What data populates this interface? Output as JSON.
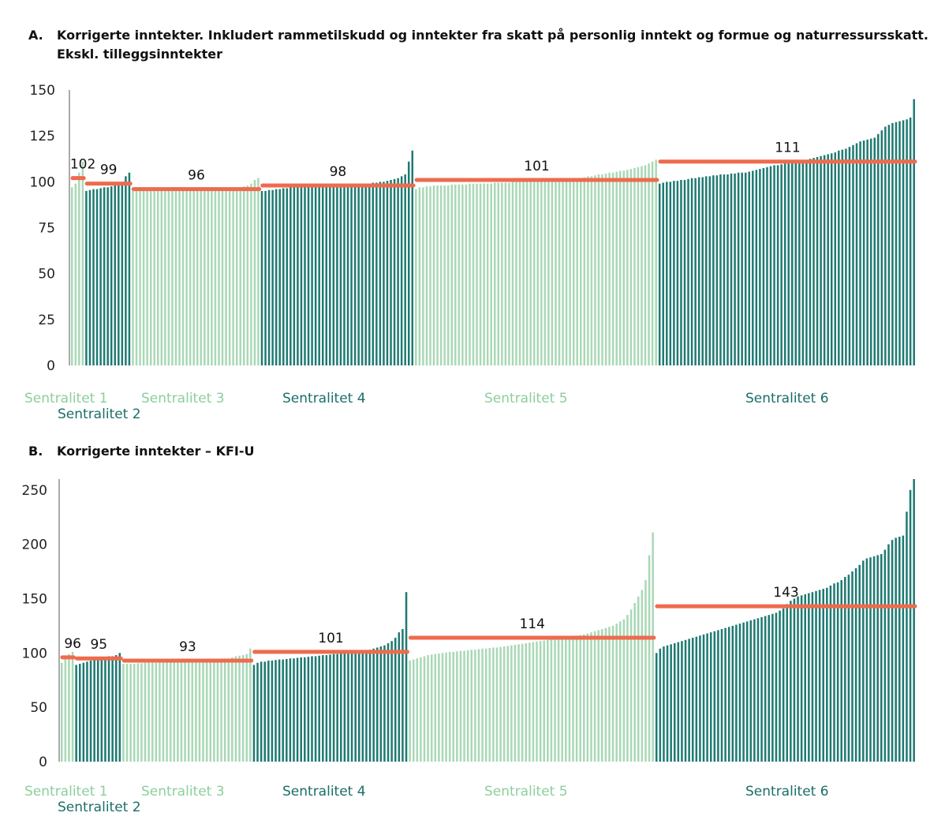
{
  "colors": {
    "light_bar": "#a9d8b6",
    "dark_bar": "#1e7a72",
    "mean_line": "#ee6b4d",
    "axis": "#555555"
  },
  "chart_data": [
    {
      "type": "bar",
      "panel": "A.",
      "title": "Korrigerte inntekter. Inkludert rammetilskudd og inntekter fra skatt på personlig inntekt og formue og naturressursskatt. Ekskl. tilleggsinntekter",
      "ylim": [
        0,
        150
      ],
      "yticks": [
        0,
        25,
        50,
        75,
        100,
        125,
        150
      ],
      "grid": false,
      "groups": [
        {
          "name": "Sentralitet 1",
          "mean": 102,
          "shade": "light",
          "values": [
            97,
            99,
            105,
            111
          ]
        },
        {
          "name": "Sentralitet 2",
          "mean": 99,
          "shade": "dark",
          "values": [
            95,
            95.5,
            96,
            96,
            96.5,
            97,
            97,
            97.5,
            98,
            98,
            100,
            103,
            105
          ]
        },
        {
          "name": "Sentralitet 3",
          "mean": 96,
          "shade": "light",
          "values": [
            95,
            95,
            95,
            95,
            95,
            95,
            95,
            95,
            95,
            95,
            95,
            95,
            95,
            95,
            95,
            95,
            95,
            95,
            95,
            95,
            95,
            95,
            95,
            95,
            95,
            95,
            95,
            95,
            96,
            96.5,
            97,
            97.5,
            98,
            99,
            101,
            102
          ]
        },
        {
          "name": "Sentralitet 4",
          "mean": 98,
          "shade": "dark",
          "values": [
            95,
            95,
            95.5,
            95.5,
            96,
            96,
            96.5,
            96.5,
            97,
            97,
            97,
            97,
            97.5,
            97.5,
            97.5,
            98,
            98,
            98,
            98,
            98,
            98,
            98,
            98.5,
            98.5,
            98.5,
            98.5,
            98.5,
            99,
            99,
            99,
            99,
            99.5,
            99.5,
            100,
            100,
            100.5,
            101,
            101.5,
            102,
            103,
            104,
            111,
            117
          ]
        },
        {
          "name": "Sentralitet 5",
          "mean": 101,
          "shade": "light",
          "values": [
            96,
            97,
            97,
            97.5,
            97.5,
            98,
            98,
            98,
            98,
            98,
            98.5,
            98.5,
            98.5,
            98.5,
            98.5,
            99,
            99,
            99,
            99,
            99,
            99,
            99,
            99.5,
            99.5,
            99.5,
            99.5,
            99.5,
            100,
            100,
            100,
            100,
            100,
            100,
            100,
            100,
            100.5,
            100.5,
            100.5,
            100.5,
            101,
            101,
            101,
            101,
            101.5,
            101.5,
            102,
            102,
            102.5,
            103,
            103,
            103.5,
            104,
            104,
            104.5,
            105,
            105,
            105.5,
            106,
            106,
            106.5,
            107,
            107.5,
            108,
            108.5,
            109,
            110,
            111,
            112
          ]
        },
        {
          "name": "Sentralitet 6",
          "mean": 111,
          "shade": "dark",
          "values": [
            99,
            99.5,
            100,
            100,
            100.5,
            100.5,
            101,
            101,
            101.5,
            102,
            102,
            102.5,
            102.5,
            103,
            103,
            103.5,
            103.5,
            104,
            104,
            104,
            104.5,
            104.5,
            105,
            105,
            105,
            105.5,
            106,
            106.5,
            107,
            107.5,
            108,
            108.5,
            109,
            109,
            109.5,
            110,
            110,
            110.5,
            111,
            111,
            111.5,
            112,
            112.5,
            113,
            113.5,
            114,
            114.5,
            115,
            115.5,
            116,
            117,
            117.5,
            118,
            119,
            120,
            121,
            122,
            122.5,
            123,
            123.5,
            124,
            126,
            128,
            130,
            131,
            132,
            132.5,
            133,
            133.5,
            134,
            135,
            145
          ]
        }
      ]
    },
    {
      "type": "bar",
      "panel": "B.",
      "title": "Korrigerte inntekter – KFI-U",
      "ylim": [
        0,
        260
      ],
      "yticks": [
        0,
        50,
        100,
        150,
        200,
        250
      ],
      "grid": false,
      "groups": [
        {
          "name": "Sentralitet 1",
          "mean": 96,
          "shade": "light",
          "values": [
            91,
            96,
            99,
            101
          ]
        },
        {
          "name": "Sentralitet 2",
          "mean": 95,
          "shade": "dark",
          "values": [
            89,
            90,
            91,
            92,
            93,
            94,
            95,
            95,
            96,
            97,
            97,
            98,
            100
          ]
        },
        {
          "name": "Sentralitet 3",
          "mean": 93,
          "shade": "light",
          "values": [
            90,
            90,
            90,
            90,
            90.5,
            90.5,
            91,
            91,
            91,
            91,
            91.5,
            91.5,
            92,
            92,
            92,
            92,
            92.5,
            92.5,
            93,
            93,
            93,
            93,
            93.5,
            93.5,
            94,
            94,
            94.5,
            94.5,
            95,
            95,
            96,
            97,
            97.5,
            98,
            99,
            104
          ]
        },
        {
          "name": "Sentralitet 4",
          "mean": 101,
          "shade": "dark",
          "values": [
            89,
            91,
            92,
            92,
            93,
            93,
            93.5,
            94,
            94,
            94.5,
            95,
            95,
            95.5,
            96,
            96,
            96.5,
            97,
            97,
            97.5,
            98,
            98,
            98.5,
            99,
            99,
            99.5,
            100,
            100,
            100.5,
            101,
            101.5,
            102,
            102.5,
            103,
            104,
            105,
            106,
            107,
            109,
            111,
            114,
            119,
            122,
            156
          ]
        },
        {
          "name": "Sentralitet 5",
          "mean": 114,
          "shade": "light",
          "values": [
            93,
            94,
            95,
            96,
            97,
            98,
            98.5,
            99,
            99.5,
            100,
            100.5,
            101,
            101,
            101.5,
            102,
            102,
            102.5,
            103,
            103,
            103.5,
            104,
            104,
            104.5,
            105,
            105,
            105.5,
            106,
            106.5,
            107,
            107.5,
            108,
            108.5,
            109,
            109.5,
            110,
            110.5,
            111,
            111.5,
            112,
            112.5,
            113,
            113.5,
            114,
            114.5,
            115,
            115.5,
            116,
            116.5,
            117,
            118,
            119,
            120,
            121,
            122,
            123,
            124,
            125,
            127,
            129,
            131,
            135,
            140,
            146,
            152,
            158,
            167,
            190,
            211
          ]
        },
        {
          "name": "Sentralitet 6",
          "mean": 143,
          "shade": "dark",
          "values": [
            100,
            104,
            106,
            107,
            108,
            109,
            110,
            111,
            112,
            113,
            114,
            115,
            116,
            117,
            118,
            119,
            120,
            121,
            122,
            123,
            124,
            125,
            126,
            127,
            128,
            129,
            130,
            131,
            132,
            133,
            134,
            135,
            136,
            137,
            139,
            141,
            145,
            148,
            150,
            152,
            153,
            154,
            155,
            156,
            157,
            158,
            159,
            160,
            162,
            164,
            165,
            167,
            170,
            172,
            175,
            178,
            181,
            185,
            187,
            188,
            189,
            190,
            191,
            195,
            200,
            204,
            206,
            207,
            208,
            230,
            250,
            260
          ]
        }
      ]
    }
  ]
}
